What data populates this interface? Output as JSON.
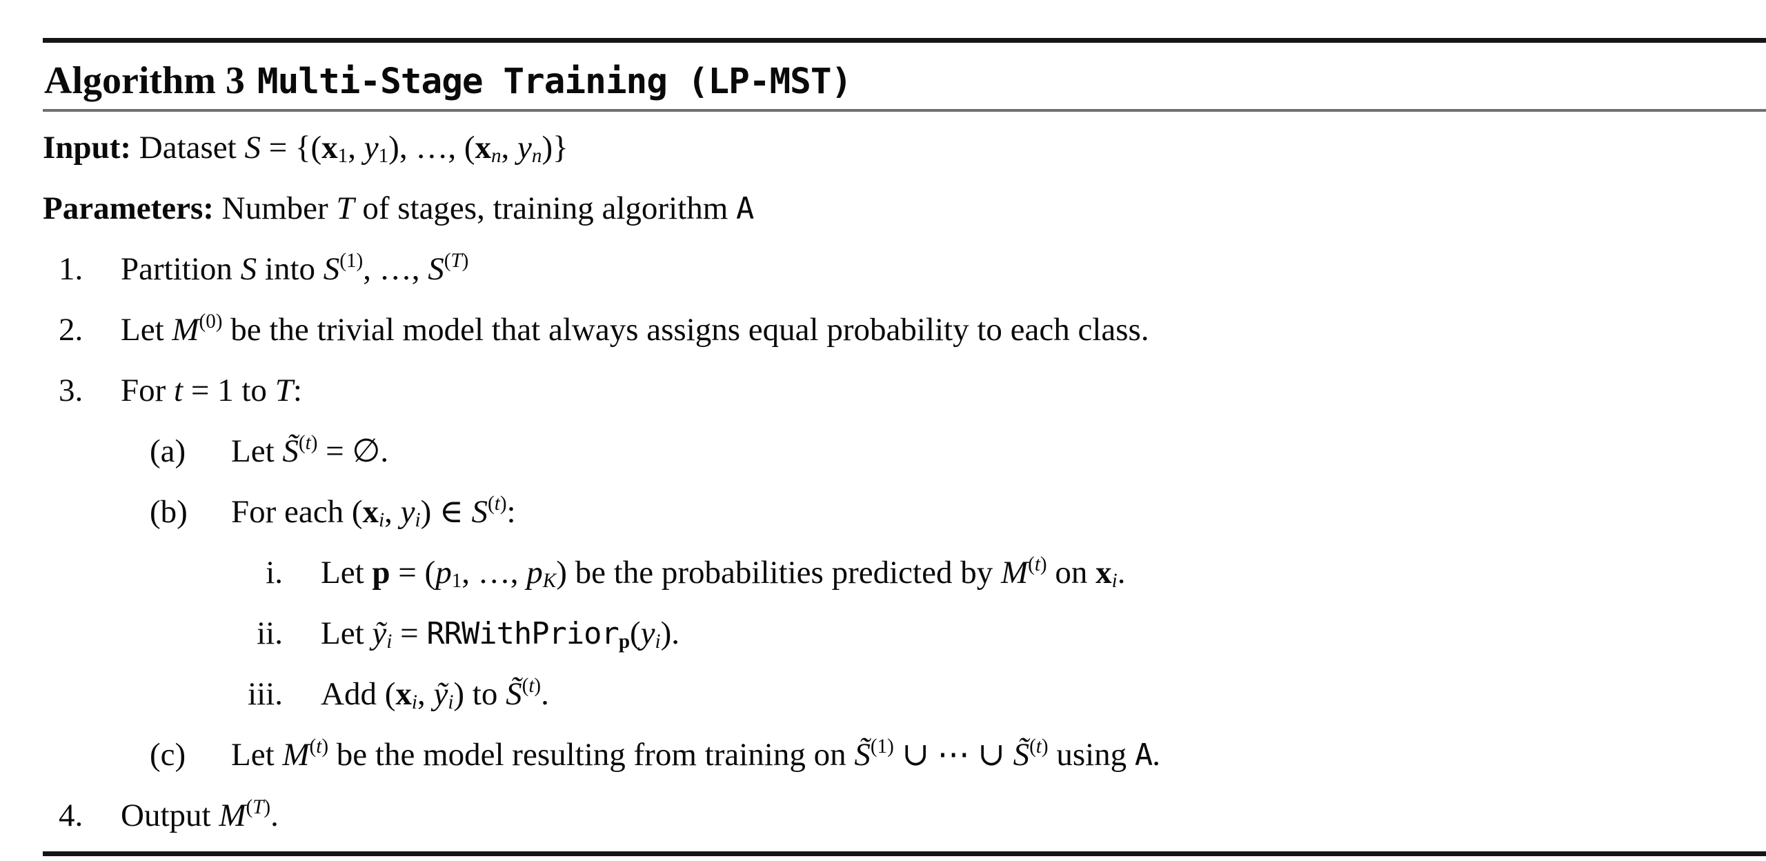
{
  "page": {
    "background": "#ffffff",
    "text_color": "#0a0a0a",
    "thick_rule_color": "#161616",
    "thin_rule_color": "#6f6f6f"
  },
  "header": {
    "label": "Algorithm 3",
    "title": "Multi-Stage Training (LP-MST)"
  },
  "lines": [
    {
      "name": "input-line",
      "indent": 0,
      "label": "",
      "segments": [
        {
          "t": "Input:",
          "s": "b"
        },
        {
          "t": " Dataset ",
          "s": "r"
        },
        {
          "t": "S",
          "s": "i"
        },
        {
          "t": " = {(",
          "s": "r"
        },
        {
          "t": "x",
          "s": "b"
        },
        {
          "t": "1",
          "s": "sub"
        },
        {
          "t": ", ",
          "s": "r"
        },
        {
          "t": "y",
          "s": "i"
        },
        {
          "t": "1",
          "s": "sub"
        },
        {
          "t": "), …, (",
          "s": "r"
        },
        {
          "t": "x",
          "s": "b"
        },
        {
          "t": "n",
          "s": "subi"
        },
        {
          "t": ", ",
          "s": "r"
        },
        {
          "t": "y",
          "s": "i"
        },
        {
          "t": "n",
          "s": "subi"
        },
        {
          "t": ")}",
          "s": "r"
        }
      ]
    },
    {
      "name": "parameters-line",
      "indent": 0,
      "label": "",
      "segments": [
        {
          "t": "Parameters:",
          "s": "b"
        },
        {
          "t": " Number ",
          "s": "r"
        },
        {
          "t": "T",
          "s": "i"
        },
        {
          "t": " of stages, training algorithm ",
          "s": "r"
        },
        {
          "t": "A",
          "s": "m"
        }
      ]
    },
    {
      "name": "step-1",
      "indent": 1,
      "label": "1.",
      "segments": [
        {
          "t": "Partition ",
          "s": "r"
        },
        {
          "t": "S",
          "s": "i"
        },
        {
          "t": " into ",
          "s": "r"
        },
        {
          "t": "S",
          "s": "i"
        },
        {
          "t": "(1)",
          "s": "sup"
        },
        {
          "t": ", …, ",
          "s": "r"
        },
        {
          "t": "S",
          "s": "i"
        },
        {
          "t": "(",
          "s": "sup"
        },
        {
          "t": "T",
          "s": "supi"
        },
        {
          "t": ")",
          "s": "sup"
        }
      ]
    },
    {
      "name": "step-2",
      "indent": 1,
      "label": "2.",
      "segments": [
        {
          "t": "Let ",
          "s": "r"
        },
        {
          "t": "M",
          "s": "i"
        },
        {
          "t": "(0)",
          "s": "sup"
        },
        {
          "t": " be the trivial model that always assigns equal probability to each class.",
          "s": "r"
        }
      ]
    },
    {
      "name": "step-3",
      "indent": 1,
      "label": "3.",
      "segments": [
        {
          "t": "For ",
          "s": "r"
        },
        {
          "t": "t",
          "s": "i"
        },
        {
          "t": " = 1 to ",
          "s": "r"
        },
        {
          "t": "T",
          "s": "i"
        },
        {
          "t": ":",
          "s": "r"
        }
      ]
    },
    {
      "name": "step-3a",
      "indent": 2,
      "label": "(a)",
      "segments": [
        {
          "t": "Let ",
          "s": "r"
        },
        {
          "t": "S̃",
          "s": "i"
        },
        {
          "t": "(",
          "s": "sup"
        },
        {
          "t": "t",
          "s": "supi"
        },
        {
          "t": ")",
          "s": "sup"
        },
        {
          "t": " = ∅.",
          "s": "r"
        }
      ]
    },
    {
      "name": "step-3b",
      "indent": 2,
      "label": "(b)",
      "segments": [
        {
          "t": "For each (",
          "s": "r"
        },
        {
          "t": "x",
          "s": "b"
        },
        {
          "t": "i",
          "s": "subi"
        },
        {
          "t": ", ",
          "s": "r"
        },
        {
          "t": "y",
          "s": "i"
        },
        {
          "t": "i",
          "s": "subi"
        },
        {
          "t": ") ∈ ",
          "s": "r"
        },
        {
          "t": "S",
          "s": "i"
        },
        {
          "t": "(",
          "s": "sup"
        },
        {
          "t": "t",
          "s": "supi"
        },
        {
          "t": ")",
          "s": "sup"
        },
        {
          "t": ":",
          "s": "r"
        }
      ]
    },
    {
      "name": "step-3b-i",
      "indent": 3,
      "label": "i.",
      "segments": [
        {
          "t": "Let ",
          "s": "r"
        },
        {
          "t": "p",
          "s": "b"
        },
        {
          "t": " = (",
          "s": "r"
        },
        {
          "t": "p",
          "s": "i"
        },
        {
          "t": "1",
          "s": "sub"
        },
        {
          "t": ", …, ",
          "s": "r"
        },
        {
          "t": "p",
          "s": "i"
        },
        {
          "t": "K",
          "s": "subi"
        },
        {
          "t": ") be the probabilities predicted by ",
          "s": "r"
        },
        {
          "t": "M",
          "s": "i"
        },
        {
          "t": "(",
          "s": "sup"
        },
        {
          "t": "t",
          "s": "supi"
        },
        {
          "t": ")",
          "s": "sup"
        },
        {
          "t": " on ",
          "s": "r"
        },
        {
          "t": "x",
          "s": "b"
        },
        {
          "t": "i",
          "s": "subi"
        },
        {
          "t": ".",
          "s": "r"
        }
      ]
    },
    {
      "name": "step-3b-ii",
      "indent": 3,
      "label": "ii.",
      "segments": [
        {
          "t": "Let ",
          "s": "r"
        },
        {
          "t": "ỹ",
          "s": "i"
        },
        {
          "t": "i",
          "s": "subi"
        },
        {
          "t": " = ",
          "s": "r"
        },
        {
          "t": "RRWithPrior",
          "s": "m"
        },
        {
          "t": "p",
          "s": "subb"
        },
        {
          "t": "(",
          "s": "r"
        },
        {
          "t": "y",
          "s": "i"
        },
        {
          "t": "i",
          "s": "subi"
        },
        {
          "t": ").",
          "s": "r"
        }
      ]
    },
    {
      "name": "step-3b-iii",
      "indent": 3,
      "label": "iii.",
      "segments": [
        {
          "t": "Add (",
          "s": "r"
        },
        {
          "t": "x",
          "s": "b"
        },
        {
          "t": "i",
          "s": "subi"
        },
        {
          "t": ", ",
          "s": "r"
        },
        {
          "t": "ỹ",
          "s": "i"
        },
        {
          "t": "i",
          "s": "subi"
        },
        {
          "t": ") to ",
          "s": "r"
        },
        {
          "t": "S̃",
          "s": "i"
        },
        {
          "t": "(",
          "s": "sup"
        },
        {
          "t": "t",
          "s": "supi"
        },
        {
          "t": ")",
          "s": "sup"
        },
        {
          "t": ".",
          "s": "r"
        }
      ]
    },
    {
      "name": "step-3c",
      "indent": 2,
      "label": "(c)",
      "segments": [
        {
          "t": "Let ",
          "s": "r"
        },
        {
          "t": "M",
          "s": "i"
        },
        {
          "t": "(",
          "s": "sup"
        },
        {
          "t": "t",
          "s": "supi"
        },
        {
          "t": ")",
          "s": "sup"
        },
        {
          "t": " be the model resulting from training on ",
          "s": "r"
        },
        {
          "t": "S̃",
          "s": "i"
        },
        {
          "t": "(1)",
          "s": "sup"
        },
        {
          "t": " ∪ ⋯ ∪ ",
          "s": "r"
        },
        {
          "t": "S̃",
          "s": "i"
        },
        {
          "t": "(",
          "s": "sup"
        },
        {
          "t": "t",
          "s": "supi"
        },
        {
          "t": ")",
          "s": "sup"
        },
        {
          "t": " using ",
          "s": "r"
        },
        {
          "t": "A",
          "s": "m"
        },
        {
          "t": ".",
          "s": "r"
        }
      ]
    },
    {
      "name": "step-4",
      "indent": 1,
      "label": "4.",
      "segments": [
        {
          "t": "Output ",
          "s": "r"
        },
        {
          "t": "M",
          "s": "i"
        },
        {
          "t": "(",
          "s": "sup"
        },
        {
          "t": "T",
          "s": "supi"
        },
        {
          "t": ")",
          "s": "sup"
        },
        {
          "t": ".",
          "s": "r"
        }
      ]
    }
  ]
}
